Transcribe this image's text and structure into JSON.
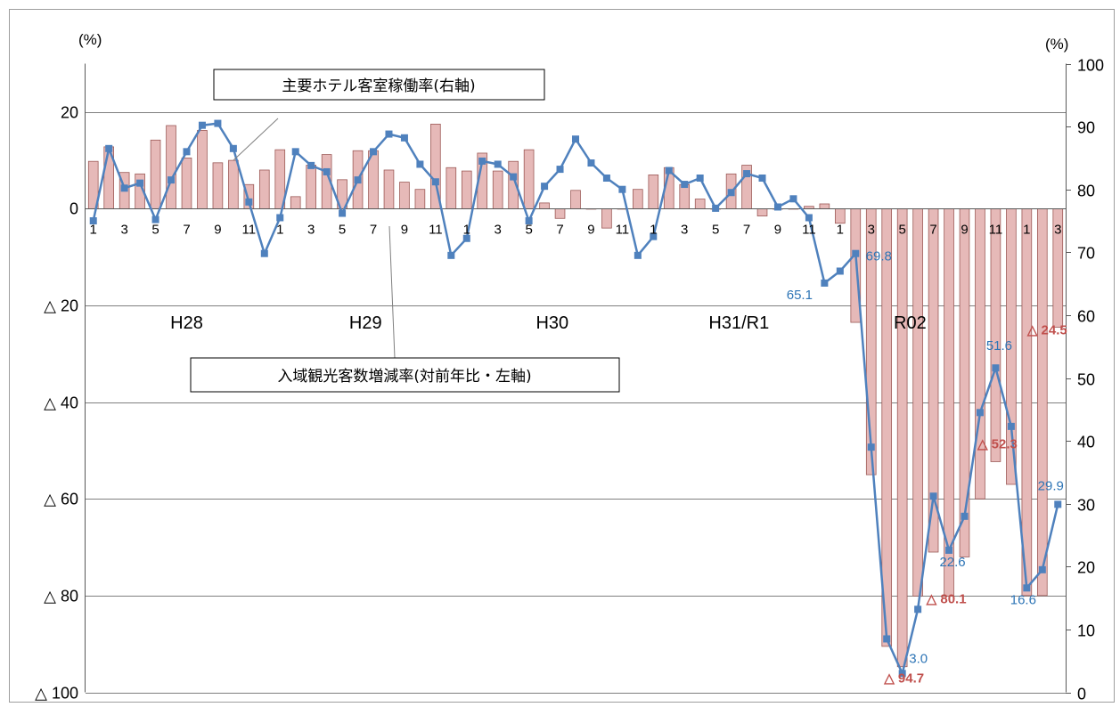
{
  "chart_data": {
    "type": "bar+line",
    "left_axis": {
      "unit": "(%)",
      "min": -100,
      "max": 30,
      "ticks": [
        20,
        0,
        -20,
        -40,
        -60,
        -80,
        -100
      ],
      "tick_labels": [
        "20",
        "0",
        "△ 20",
        "△ 40",
        "△ 60",
        "△ 80",
        "△ 100"
      ]
    },
    "right_axis": {
      "unit": "(%)",
      "min": 0,
      "max": 100,
      "ticks": [
        0,
        10,
        20,
        30,
        40,
        50,
        60,
        70,
        80,
        90,
        100
      ],
      "tick_labels": [
        "0",
        "10",
        "20",
        "30",
        "40",
        "50",
        "60",
        "70",
        "80",
        "90",
        "100"
      ]
    },
    "month_labels": [
      "1",
      "3",
      "5",
      "7",
      "9",
      "11",
      "1",
      "3",
      "5",
      "7",
      "9",
      "11",
      "1",
      "3",
      "5",
      "7",
      "9",
      "11",
      "1",
      "3",
      "5",
      "7",
      "9",
      "11",
      "1",
      "3",
      "5",
      "7",
      "9",
      "11",
      "1",
      "3"
    ],
    "year_labels": [
      "H28",
      "H29",
      "H30",
      "H31/R1",
      "R02"
    ],
    "legend": {
      "line": "主要ホテル客室稼働率(右軸)",
      "bar": "入域観光客数増減率(対前年比・左軸)"
    },
    "bar_series": {
      "name": "入域観光客数増減率(対前年比・左軸)",
      "color": "#E6B9B8",
      "values": [
        9.8,
        12.8,
        7.5,
        7.2,
        14.2,
        17.2,
        10.5,
        16.2,
        9.5,
        10.0,
        5.0,
        8.0,
        12.2,
        2.5,
        9.0,
        11.2,
        6.0,
        12.0,
        12.0,
        8.0,
        5.5,
        4.0,
        17.5,
        8.5,
        7.8,
        11.5,
        7.8,
        9.8,
        12.2,
        1.2,
        -2.0,
        3.8,
        0.0,
        -4.0,
        0.0,
        4.0,
        7.0,
        8.5,
        5.0,
        2.0,
        0.0,
        7.2,
        9.0,
        -1.5,
        0.0,
        0.0,
        0.5,
        1.0,
        -3.0,
        -23.5,
        -55.0,
        -90.5,
        -94.7,
        -80.1,
        -71.0,
        -80.1,
        -72.0,
        -60.0,
        -52.3,
        -57.0,
        -80.0,
        -80.0,
        -24.5
      ]
    },
    "line_series": {
      "name": "主要ホテル客室稼働率(右軸)",
      "color": "#4F81BD",
      "values": [
        75.0,
        86.5,
        80.2,
        81.0,
        75.2,
        81.5,
        86.0,
        90.2,
        90.5,
        86.5,
        78.0,
        69.8,
        75.5,
        86.0,
        83.8,
        82.8,
        76.2,
        81.5,
        86.0,
        88.8,
        88.2,
        84.0,
        81.2,
        69.5,
        72.2,
        84.5,
        84.0,
        82.0,
        75.0,
        80.5,
        83.2,
        88.0,
        84.2,
        81.8,
        80.0,
        69.5,
        72.5,
        83.0,
        80.8,
        81.8,
        77.0,
        79.5,
        82.5,
        81.8,
        77.2,
        78.5,
        75.5,
        65.1,
        67.0,
        69.8,
        39.0,
        8.5,
        3.0,
        13.2,
        31.2,
        22.6,
        28.0,
        44.5,
        51.6,
        42.3,
        16.6,
        19.5,
        29.9
      ]
    },
    "annotations_bar": [
      {
        "index": 52,
        "text": "△ 94.7"
      },
      {
        "index": 53,
        "text": "△ 80.1"
      },
      {
        "index": 58,
        "text": "△ 52.3"
      },
      {
        "index": 62,
        "text": "△ 24.5"
      }
    ],
    "annotations_line": [
      {
        "index": 47,
        "text": "65.1"
      },
      {
        "index": 49,
        "text": "69.8"
      },
      {
        "index": 52,
        "text": "3.0"
      },
      {
        "index": 55,
        "text": "22.6"
      },
      {
        "index": 58,
        "text": "51.6"
      },
      {
        "index": 60,
        "text": "16.6"
      },
      {
        "index": 62,
        "text": "29.9"
      }
    ],
    "colors": {
      "axis": "#595959",
      "grid": "#7F7F7F",
      "text": "#000000",
      "bar_annotation": "#C0504D",
      "line_annotation": "#2E75B6"
    }
  }
}
